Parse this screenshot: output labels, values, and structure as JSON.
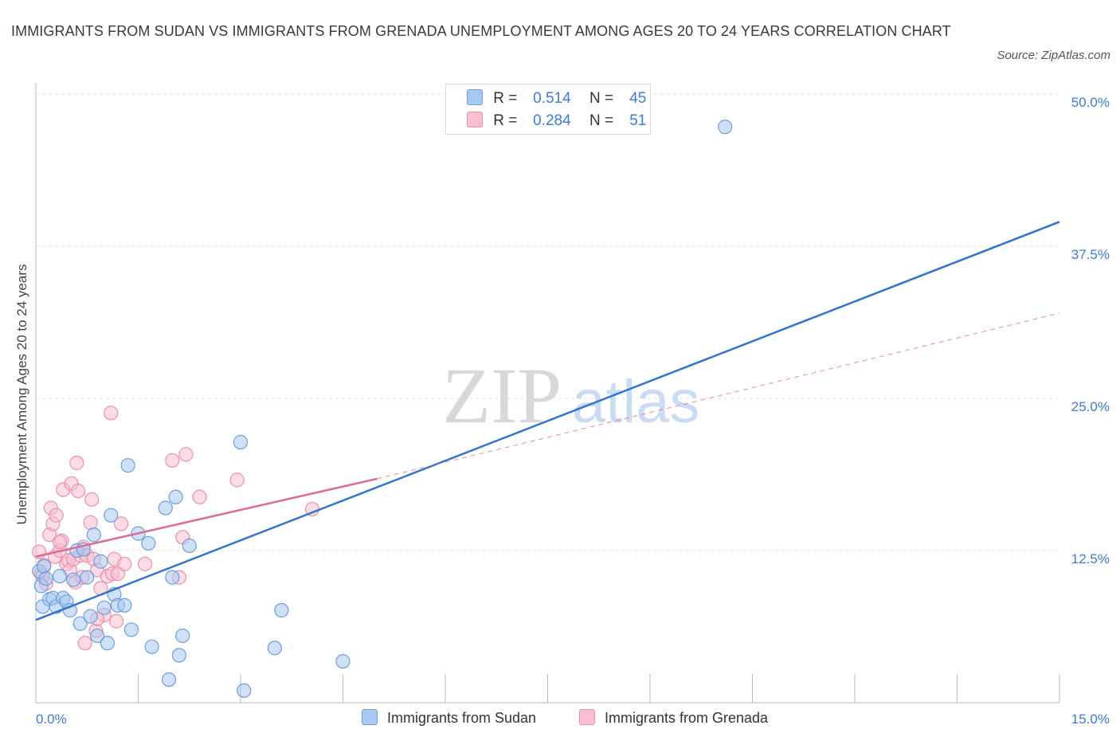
{
  "header": {
    "title": "IMMIGRANTS FROM SUDAN VS IMMIGRANTS FROM GRENADA UNEMPLOYMENT AMONG AGES 20 TO 24 YEARS CORRELATION CHART",
    "source": "Source: ZipAtlas.com"
  },
  "watermark": {
    "zip": "ZIP",
    "atlas": "atlas"
  },
  "legend": {
    "sudan": {
      "r_label": "R =",
      "r_value": "0.514",
      "n_label": "N =",
      "n_value": "45"
    },
    "grenada": {
      "r_label": "R =",
      "r_value": "0.284",
      "n_label": "N =",
      "n_value": "51"
    }
  },
  "bottom_legend": {
    "sudan": "Immigrants from Sudan",
    "grenada": "Immigrants from Grenada"
  },
  "colors": {
    "sudan_fill": "#a9c8f0",
    "sudan_stroke": "#6a9fe0",
    "sudan_line": "#2f74d0",
    "grenada_fill": "#f7bfd0",
    "grenada_stroke": "#ec8fab",
    "grenada_line": "#e06a93",
    "grid": "#e2e2e2",
    "axis_text": "#3d7bd4"
  },
  "chart_data": {
    "type": "scatter",
    "title": "IMMIGRANTS FROM SUDAN VS IMMIGRANTS FROM GRENADA UNEMPLOYMENT AMONG AGES 20 TO 24 YEARS CORRELATION CHART",
    "xlabel": "",
    "ylabel": "Unemployment Among Ages 20 to 24 years",
    "xlim": [
      0,
      15
    ],
    "ylim": [
      0,
      50
    ],
    "x_tick_labels": {
      "min": "0.0%",
      "max": "15.0%"
    },
    "y_ticks": [
      {
        "value": 12.5,
        "label": "12.5%"
      },
      {
        "value": 25,
        "label": "25.0%"
      },
      {
        "value": 37.5,
        "label": "37.5%"
      },
      {
        "value": 50,
        "label": "50.0%"
      }
    ],
    "series": [
      {
        "name": "Immigrants from Sudan",
        "points": [
          [
            0.05,
            10.8
          ],
          [
            0.08,
            9.6
          ],
          [
            0.1,
            7.9
          ],
          [
            0.12,
            11.2
          ],
          [
            0.15,
            10.2
          ],
          [
            0.2,
            8.5
          ],
          [
            0.25,
            8.6
          ],
          [
            0.3,
            7.9
          ],
          [
            0.35,
            10.4
          ],
          [
            0.4,
            8.6
          ],
          [
            0.45,
            8.3
          ],
          [
            0.5,
            7.6
          ],
          [
            0.55,
            10.1
          ],
          [
            0.6,
            12.5
          ],
          [
            0.65,
            6.5
          ],
          [
            0.7,
            12.6
          ],
          [
            0.75,
            10.3
          ],
          [
            0.8,
            7.1
          ],
          [
            0.85,
            13.8
          ],
          [
            0.9,
            5.5
          ],
          [
            0.95,
            11.6
          ],
          [
            1.0,
            7.8
          ],
          [
            1.05,
            4.9
          ],
          [
            1.1,
            15.4
          ],
          [
            1.15,
            8.9
          ],
          [
            1.2,
            8.0
          ],
          [
            1.3,
            8.0
          ],
          [
            1.35,
            19.5
          ],
          [
            1.4,
            6.0
          ],
          [
            1.5,
            13.9
          ],
          [
            1.65,
            13.1
          ],
          [
            1.7,
            4.6
          ],
          [
            1.9,
            16.0
          ],
          [
            1.95,
            1.9
          ],
          [
            2.0,
            10.3
          ],
          [
            2.05,
            16.9
          ],
          [
            2.1,
            3.9
          ],
          [
            2.15,
            5.5
          ],
          [
            2.25,
            12.9
          ],
          [
            3.0,
            21.4
          ],
          [
            3.05,
            1.0
          ],
          [
            3.5,
            4.5
          ],
          [
            3.6,
            7.6
          ],
          [
            4.5,
            3.4
          ],
          [
            10.1,
            47.3
          ]
        ]
      },
      {
        "name": "Immigrants from Grenada",
        "points": [
          [
            0.05,
            12.4
          ],
          [
            0.08,
            10.6
          ],
          [
            0.12,
            11.3
          ],
          [
            0.15,
            9.8
          ],
          [
            0.2,
            13.8
          ],
          [
            0.22,
            16.0
          ],
          [
            0.25,
            14.7
          ],
          [
            0.28,
            12.0
          ],
          [
            0.3,
            15.4
          ],
          [
            0.35,
            12.5
          ],
          [
            0.38,
            13.3
          ],
          [
            0.4,
            17.5
          ],
          [
            0.45,
            11.4
          ],
          [
            0.48,
            11.7
          ],
          [
            0.5,
            10.9
          ],
          [
            0.52,
            18.0
          ],
          [
            0.55,
            11.8
          ],
          [
            0.58,
            9.9
          ],
          [
            0.6,
            19.7
          ],
          [
            0.62,
            17.4
          ],
          [
            0.65,
            12.1
          ],
          [
            0.68,
            10.3
          ],
          [
            0.7,
            12.8
          ],
          [
            0.72,
            4.9
          ],
          [
            0.75,
            12.1
          ],
          [
            0.8,
            14.8
          ],
          [
            0.82,
            16.7
          ],
          [
            0.85,
            11.8
          ],
          [
            0.88,
            5.9
          ],
          [
            0.9,
            10.9
          ],
          [
            0.95,
            9.4
          ],
          [
            1.0,
            7.2
          ],
          [
            1.05,
            10.4
          ],
          [
            1.1,
            23.8
          ],
          [
            1.12,
            10.6
          ],
          [
            1.15,
            11.8
          ],
          [
            1.2,
            10.6
          ],
          [
            1.25,
            14.7
          ],
          [
            1.3,
            11.4
          ],
          [
            1.6,
            11.4
          ],
          [
            2.0,
            19.9
          ],
          [
            2.1,
            10.3
          ],
          [
            2.15,
            13.6
          ],
          [
            2.2,
            20.4
          ],
          [
            2.4,
            16.9
          ],
          [
            2.95,
            18.3
          ],
          [
            4.05,
            15.9
          ],
          [
            1.18,
            6.7
          ],
          [
            0.35,
            13.2
          ],
          [
            0.9,
            6.9
          ],
          [
            0.1,
            10.4
          ]
        ]
      }
    ],
    "trendlines": [
      {
        "series": "Immigrants from Sudan",
        "x": [
          0,
          15
        ],
        "y": [
          6.8,
          39.5
        ],
        "style": "solid"
      },
      {
        "series": "Immigrants from Grenada",
        "x": [
          0,
          5
        ],
        "y": [
          12.0,
          18.4
        ],
        "style": "solid"
      },
      {
        "series": "Immigrants from Grenada",
        "x": [
          5,
          15
        ],
        "y": [
          18.4,
          32.0
        ],
        "style": "dashed"
      }
    ],
    "grid": true,
    "legend_position": "top-center"
  }
}
